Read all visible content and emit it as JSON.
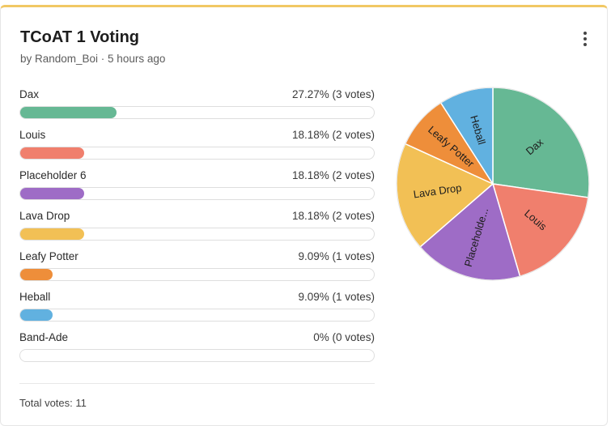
{
  "poll": {
    "title": "TCoAT 1 Voting",
    "subtitle": "by Random_Boi · 5 hours ago",
    "total_label": "Total votes: 11"
  },
  "chart_data": {
    "type": "pie",
    "categories": [
      "Dax",
      "Louis",
      "Placeholder 6",
      "Lava Drop",
      "Leafy Potter",
      "Heball",
      "Band-Ade"
    ],
    "values": [
      3,
      2,
      2,
      2,
      1,
      1,
      0
    ],
    "percent_labels": [
      "27.27% (3 votes)",
      "18.18% (2 votes)",
      "18.18% (2 votes)",
      "18.18% (2 votes)",
      "9.09% (1 votes)",
      "9.09% (1 votes)",
      "0% (0 votes)"
    ],
    "pie_labels": [
      "Dax",
      "Louis",
      "Placeholde...",
      "Lava Drop",
      "Leafy Potter",
      "Heball",
      ""
    ],
    "colors": [
      "#66b894",
      "#f07f6d",
      "#9e6cc6",
      "#f2c055",
      "#ee8e3a",
      "#61b1e0",
      "#cccccc"
    ],
    "total": 11
  }
}
